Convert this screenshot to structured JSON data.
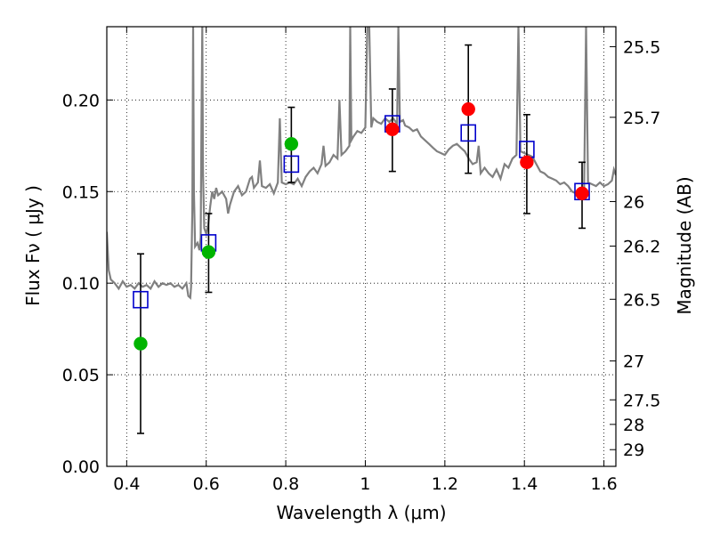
{
  "chart_data": {
    "type": "scatter",
    "xlabel": "Wavelength  λ (μm)",
    "ylabel": "Flux  Fν  ( μJy )",
    "y2label": "Magnitude (AB)",
    "xlim": [
      0.35,
      1.63
    ],
    "ylim": [
      0.0,
      0.24
    ],
    "grid": true,
    "x_ticks": [
      {
        "v": 0.4,
        "label": "0.4"
      },
      {
        "v": 0.6,
        "label": "0.6"
      },
      {
        "v": 0.8,
        "label": "0.8"
      },
      {
        "v": 1.0,
        "label": "1"
      },
      {
        "v": 1.2,
        "label": "1.2"
      },
      {
        "v": 1.4,
        "label": "1.4"
      },
      {
        "v": 1.6,
        "label": "1.6"
      }
    ],
    "y_ticks": [
      {
        "v": 0.0,
        "label": "0.00"
      },
      {
        "v": 0.05,
        "label": "0.05"
      },
      {
        "v": 0.1,
        "label": "0.10"
      },
      {
        "v": 0.15,
        "label": "0.15"
      },
      {
        "v": 0.2,
        "label": "0.20"
      }
    ],
    "y2_ticks": [
      {
        "label": "25.5"
      },
      {
        "label": "25.7"
      },
      {
        "label": "26"
      },
      {
        "label": "26.2"
      },
      {
        "label": "26.5"
      },
      {
        "label": "27"
      },
      {
        "label": "27.5"
      },
      {
        "label": "28"
      },
      {
        "label": "29"
      }
    ],
    "observed_green": {
      "color": "#00b400",
      "points": [
        {
          "x": 0.435,
          "y": 0.067,
          "err_low": 0.018,
          "err_high": 0.116
        },
        {
          "x": 0.606,
          "y": 0.117,
          "err_low": 0.095,
          "err_high": 0.138
        },
        {
          "x": 0.814,
          "y": 0.176,
          "err_low": 0.155,
          "err_high": 0.196
        }
      ]
    },
    "observed_red": {
      "color": "#ff0000",
      "points": [
        {
          "x": 1.068,
          "y": 0.184,
          "err_low": 0.161,
          "err_high": 0.206
        },
        {
          "x": 1.259,
          "y": 0.195,
          "err_low": 0.16,
          "err_high": 0.23
        },
        {
          "x": 1.406,
          "y": 0.166,
          "err_low": 0.138,
          "err_high": 0.192
        },
        {
          "x": 1.545,
          "y": 0.149,
          "err_low": 0.13,
          "err_high": 0.166
        }
      ]
    },
    "model_squares": {
      "color": "#0000cc",
      "points": [
        {
          "x": 0.435,
          "y": 0.091
        },
        {
          "x": 0.606,
          "y": 0.122
        },
        {
          "x": 0.814,
          "y": 0.165
        },
        {
          "x": 1.068,
          "y": 0.187
        },
        {
          "x": 1.259,
          "y": 0.182
        },
        {
          "x": 1.406,
          "y": 0.173
        },
        {
          "x": 1.545,
          "y": 0.15
        }
      ]
    },
    "spectrum": {
      "color": "#808080",
      "points": [
        [
          0.35,
          0.128
        ],
        [
          0.355,
          0.107
        ],
        [
          0.36,
          0.102
        ],
        [
          0.37,
          0.1
        ],
        [
          0.38,
          0.097
        ],
        [
          0.39,
          0.101
        ],
        [
          0.4,
          0.098
        ],
        [
          0.41,
          0.099
        ],
        [
          0.42,
          0.097
        ],
        [
          0.43,
          0.1
        ],
        [
          0.44,
          0.098
        ],
        [
          0.45,
          0.099
        ],
        [
          0.46,
          0.097
        ],
        [
          0.47,
          0.101
        ],
        [
          0.48,
          0.098
        ],
        [
          0.49,
          0.1
        ],
        [
          0.5,
          0.099
        ],
        [
          0.51,
          0.1
        ],
        [
          0.52,
          0.098
        ],
        [
          0.53,
          0.099
        ],
        [
          0.54,
          0.097
        ],
        [
          0.55,
          0.1
        ],
        [
          0.555,
          0.093
        ],
        [
          0.56,
          0.092
        ],
        [
          0.562,
          0.098
        ],
        [
          0.565,
          0.14
        ],
        [
          0.567,
          0.24
        ],
        [
          0.569,
          0.15
        ],
        [
          0.572,
          0.12
        ],
        [
          0.578,
          0.122
        ],
        [
          0.583,
          0.118
        ],
        [
          0.586,
          0.125
        ],
        [
          0.588,
          0.19
        ],
        [
          0.59,
          0.24
        ],
        [
          0.592,
          0.16
        ],
        [
          0.595,
          0.13
        ],
        [
          0.6,
          0.127
        ],
        [
          0.605,
          0.132
        ],
        [
          0.61,
          0.142
        ],
        [
          0.615,
          0.15
        ],
        [
          0.62,
          0.146
        ],
        [
          0.625,
          0.152
        ],
        [
          0.63,
          0.148
        ],
        [
          0.64,
          0.15
        ],
        [
          0.65,
          0.146
        ],
        [
          0.655,
          0.138
        ],
        [
          0.66,
          0.143
        ],
        [
          0.67,
          0.15
        ],
        [
          0.68,
          0.153
        ],
        [
          0.69,
          0.148
        ],
        [
          0.7,
          0.15
        ],
        [
          0.71,
          0.157
        ],
        [
          0.715,
          0.158
        ],
        [
          0.72,
          0.152
        ],
        [
          0.73,
          0.155
        ],
        [
          0.735,
          0.167
        ],
        [
          0.74,
          0.153
        ],
        [
          0.75,
          0.152
        ],
        [
          0.76,
          0.154
        ],
        [
          0.77,
          0.149
        ],
        [
          0.78,
          0.155
        ],
        [
          0.785,
          0.19
        ],
        [
          0.79,
          0.155
        ],
        [
          0.8,
          0.154
        ],
        [
          0.81,
          0.155
        ],
        [
          0.82,
          0.154
        ],
        [
          0.83,
          0.157
        ],
        [
          0.84,
          0.153
        ],
        [
          0.85,
          0.158
        ],
        [
          0.86,
          0.161
        ],
        [
          0.87,
          0.163
        ],
        [
          0.88,
          0.16
        ],
        [
          0.89,
          0.165
        ],
        [
          0.895,
          0.175
        ],
        [
          0.9,
          0.164
        ],
        [
          0.91,
          0.166
        ],
        [
          0.92,
          0.17
        ],
        [
          0.93,
          0.168
        ],
        [
          0.935,
          0.2
        ],
        [
          0.94,
          0.17
        ],
        [
          0.95,
          0.172
        ],
        [
          0.96,
          0.175
        ],
        [
          0.962,
          0.24
        ],
        [
          0.965,
          0.178
        ],
        [
          0.97,
          0.18
        ],
        [
          0.98,
          0.183
        ],
        [
          0.99,
          0.182
        ],
        [
          1.0,
          0.185
        ],
        [
          1.005,
          0.24
        ],
        [
          1.01,
          0.24
        ],
        [
          1.015,
          0.185
        ],
        [
          1.02,
          0.19
        ],
        [
          1.03,
          0.188
        ],
        [
          1.04,
          0.187
        ],
        [
          1.05,
          0.19
        ],
        [
          1.06,
          0.188
        ],
        [
          1.07,
          0.19
        ],
        [
          1.08,
          0.187
        ],
        [
          1.083,
          0.24
        ],
        [
          1.087,
          0.188
        ],
        [
          1.095,
          0.189
        ],
        [
          1.1,
          0.186
        ],
        [
          1.11,
          0.185
        ],
        [
          1.12,
          0.183
        ],
        [
          1.13,
          0.184
        ],
        [
          1.14,
          0.18
        ],
        [
          1.15,
          0.178
        ],
        [
          1.16,
          0.176
        ],
        [
          1.17,
          0.174
        ],
        [
          1.18,
          0.172
        ],
        [
          1.19,
          0.171
        ],
        [
          1.2,
          0.17
        ],
        [
          1.21,
          0.173
        ],
        [
          1.22,
          0.175
        ],
        [
          1.23,
          0.176
        ],
        [
          1.24,
          0.174
        ],
        [
          1.25,
          0.172
        ],
        [
          1.26,
          0.168
        ],
        [
          1.27,
          0.165
        ],
        [
          1.28,
          0.166
        ],
        [
          1.285,
          0.175
        ],
        [
          1.29,
          0.16
        ],
        [
          1.3,
          0.163
        ],
        [
          1.31,
          0.16
        ],
        [
          1.32,
          0.158
        ],
        [
          1.33,
          0.162
        ],
        [
          1.34,
          0.157
        ],
        [
          1.35,
          0.165
        ],
        [
          1.36,
          0.163
        ],
        [
          1.37,
          0.168
        ],
        [
          1.38,
          0.17
        ],
        [
          1.385,
          0.24
        ],
        [
          1.39,
          0.172
        ],
        [
          1.4,
          0.171
        ],
        [
          1.41,
          0.17
        ],
        [
          1.42,
          0.169
        ],
        [
          1.43,
          0.165
        ],
        [
          1.44,
          0.161
        ],
        [
          1.45,
          0.16
        ],
        [
          1.46,
          0.158
        ],
        [
          1.47,
          0.157
        ],
        [
          1.48,
          0.156
        ],
        [
          1.49,
          0.154
        ],
        [
          1.5,
          0.155
        ],
        [
          1.51,
          0.153
        ],
        [
          1.52,
          0.15
        ],
        [
          1.53,
          0.149
        ],
        [
          1.54,
          0.15
        ],
        [
          1.55,
          0.151
        ],
        [
          1.555,
          0.24
        ],
        [
          1.56,
          0.155
        ],
        [
          1.57,
          0.154
        ],
        [
          1.58,
          0.153
        ],
        [
          1.59,
          0.155
        ],
        [
          1.6,
          0.153
        ],
        [
          1.61,
          0.154
        ],
        [
          1.62,
          0.156
        ],
        [
          1.625,
          0.162
        ],
        [
          1.63,
          0.159
        ]
      ]
    }
  }
}
